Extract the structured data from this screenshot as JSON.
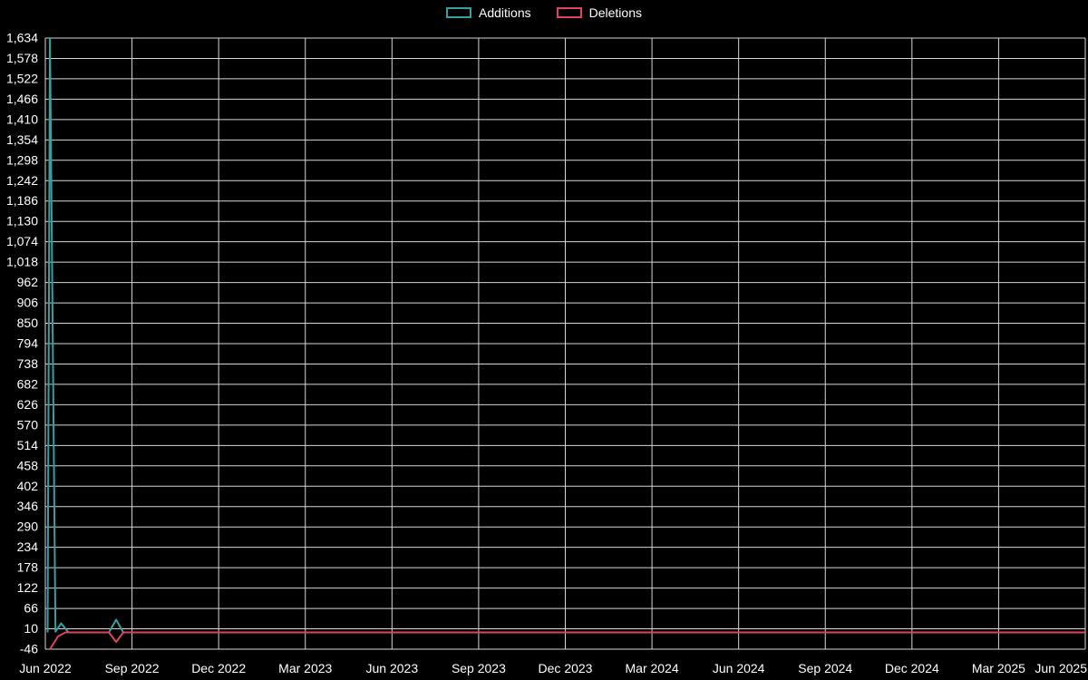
{
  "legend": {
    "items": [
      {
        "label": "Additions",
        "color": "#35a2a2"
      },
      {
        "label": "Deletions",
        "color": "#e0435c"
      }
    ]
  },
  "chart_data": {
    "type": "line",
    "title": "",
    "xlabel": "",
    "ylabel": "",
    "background": "#000000",
    "grid": true,
    "grid_color": "#d6d6d6",
    "text_color": "#ffffff",
    "legend_position": "top-center",
    "ylim": [
      -46,
      1634
    ],
    "y_step": 56,
    "x_months_range": [
      0,
      36
    ],
    "x_tick_labels": [
      "Jun 2022",
      "Sep 2022",
      "Dec 2022",
      "Mar 2023",
      "Jun 2023",
      "Sep 2023",
      "Dec 2023",
      "Mar 2024",
      "Jun 2024",
      "Sep 2024",
      "Dec 2024",
      "Mar 2025",
      "Jun 2025"
    ],
    "y_tick_labels_top_to_bottom": [
      "1,634",
      "1,578",
      "1,522",
      "1,466",
      "1,410",
      "1,354",
      "1,298",
      "1,242",
      "1,186",
      "1,130",
      "1,074",
      "1,018",
      "962",
      "906",
      "850",
      "794",
      "738",
      "682",
      "626",
      "570",
      "514",
      "458",
      "402",
      "346",
      "290",
      "234",
      "178",
      "122",
      "66",
      "10",
      "-46"
    ],
    "series": [
      {
        "name": "Additions",
        "color": "#35a2a2",
        "points_month_value": [
          [
            0.08,
            0
          ],
          [
            0.16,
            1634
          ],
          [
            0.35,
            2
          ],
          [
            0.55,
            25
          ],
          [
            0.8,
            0
          ],
          [
            2.2,
            0
          ],
          [
            2.45,
            35
          ],
          [
            2.7,
            0
          ],
          [
            36,
            0
          ]
        ]
      },
      {
        "name": "Deletions",
        "color": "#e0435c",
        "points_month_value": [
          [
            0.16,
            -46
          ],
          [
            0.45,
            -10
          ],
          [
            0.7,
            0
          ],
          [
            2.2,
            0
          ],
          [
            2.45,
            -26
          ],
          [
            2.7,
            0
          ],
          [
            36,
            0
          ]
        ]
      }
    ]
  }
}
